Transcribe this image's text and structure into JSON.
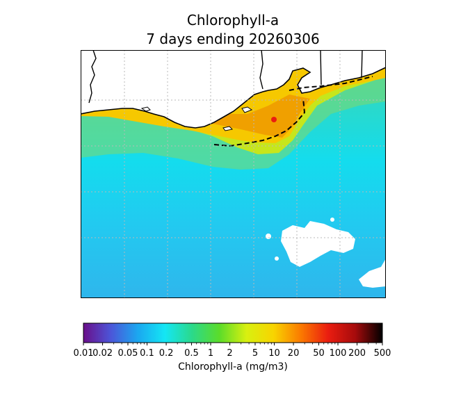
{
  "title": {
    "line1": "Chlorophyll-a",
    "line2": "7 days ending 20260306"
  },
  "colorbar": {
    "label": "Chlorophyll-a (mg/m3)",
    "scale": "log",
    "range": [
      0.01,
      500
    ],
    "ticks": [
      {
        "value": 0.01,
        "label": "0.01"
      },
      {
        "value": 0.02,
        "label": "0.02"
      },
      {
        "value": 0.05,
        "label": "0.05"
      },
      {
        "value": 0.1,
        "label": "0.1"
      },
      {
        "value": 0.2,
        "label": "0.2"
      },
      {
        "value": 0.5,
        "label": "0.5"
      },
      {
        "value": 1,
        "label": "1"
      },
      {
        "value": 2,
        "label": "2"
      },
      {
        "value": 5,
        "label": "5"
      },
      {
        "value": 10,
        "label": "10"
      },
      {
        "value": 20,
        "label": "20"
      },
      {
        "value": 50,
        "label": "50"
      },
      {
        "value": 100,
        "label": "100"
      },
      {
        "value": 200,
        "label": "200"
      },
      {
        "value": 500,
        "label": "500"
      }
    ],
    "minor_ticks": [
      0.03,
      0.04,
      0.06,
      0.07,
      0.08,
      0.09,
      0.3,
      0.4,
      0.6,
      0.7,
      0.8,
      0.9,
      3,
      4,
      6,
      7,
      8,
      9,
      30,
      40,
      60,
      70,
      80,
      90,
      300,
      400
    ],
    "colormap": [
      "#6a0f8a",
      "#4c55d8",
      "#1ba7f0",
      "#14e6f4",
      "#2bd98a",
      "#5bdc2a",
      "#d8f010",
      "#f8d400",
      "#fb7a00",
      "#ea1d10",
      "#a60b0c",
      "#000000"
    ]
  },
  "map": {
    "colors": {
      "land": "#ffffff",
      "coastline": "#000000",
      "gridline": "#b9b9b9",
      "offshore": "#2ec0ee",
      "midshelf": "#14dcee",
      "shelf": "#4ed8a0",
      "nearshore": "#b9e41c",
      "bloom": "#f6c800",
      "bloom_core": "#f0a000",
      "cloud": "#ffffff"
    }
  }
}
